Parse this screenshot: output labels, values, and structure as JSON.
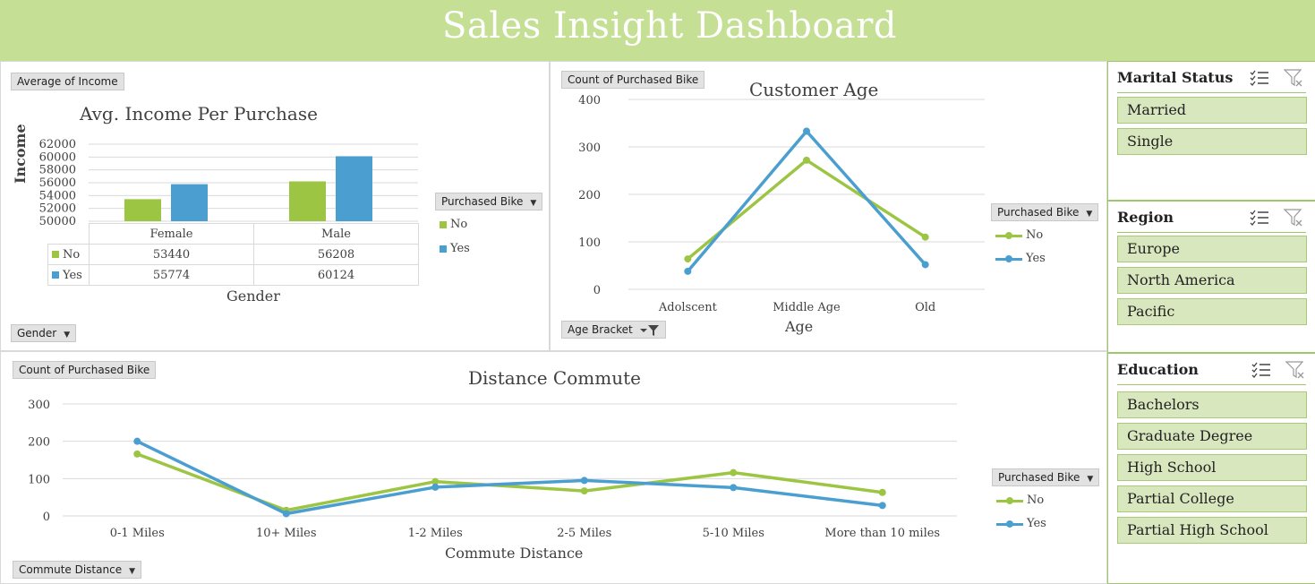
{
  "header": {
    "title": "Sales Insight Dashboard"
  },
  "colors": {
    "no": "#9dc544",
    "yes": "#4a9fd0",
    "header": "#c5df95",
    "grid": "#d9d9d9"
  },
  "income_panel": {
    "value_button": "Average of Income",
    "axis_button": "Gender",
    "legend_button": "Purchased Bike"
  },
  "age_panel": {
    "value_button": "Count of Purchased Bike",
    "axis_button": "Age Bracket",
    "legend_button": "Purchased Bike"
  },
  "commute_panel": {
    "value_button": "Count of Purchased Bike",
    "axis_button": "Commute Distance",
    "legend_button": "Purchased Bike"
  },
  "chart_data": [
    {
      "type": "bar",
      "title": "Avg. Income Per Purchase",
      "xlabel": "Gender",
      "ylabel": "Income",
      "categories": [
        "Female",
        "Male"
      ],
      "series": [
        {
          "name": "No",
          "values": [
            53440,
            56208
          ]
        },
        {
          "name": "Yes",
          "values": [
            55774,
            60124
          ]
        }
      ],
      "yticks": [
        "50000",
        "52000",
        "54000",
        "56000",
        "58000",
        "60000",
        "62000"
      ],
      "ylim": [
        50000,
        62000
      ],
      "legend": "right",
      "grid": true,
      "data_table": true
    },
    {
      "type": "line",
      "title": "Customer Age",
      "xlabel": "Age",
      "ylabel": "",
      "categories": [
        "Adolscent",
        "Middle Age",
        "Old"
      ],
      "series": [
        {
          "name": "No",
          "values": [
            64,
            272,
            110
          ]
        },
        {
          "name": "Yes",
          "values": [
            38,
            333,
            52
          ]
        }
      ],
      "yticks": [
        "0",
        "100",
        "200",
        "300",
        "400"
      ],
      "ylim": [
        0,
        400
      ],
      "legend": "right",
      "grid": true
    },
    {
      "type": "line",
      "title": "Distance Commute",
      "xlabel": "Commute Distance",
      "ylabel": "",
      "categories": [
        "0-1 Miles",
        "10+ Miles",
        "1-2 Miles",
        "2-5 Miles",
        "5-10 Miles",
        "More than 10 miles"
      ],
      "series": [
        {
          "name": "No",
          "values": [
            166,
            15,
            92,
            67,
            116,
            63
          ]
        },
        {
          "name": "Yes",
          "values": [
            200,
            6,
            77,
            95,
            76,
            28
          ]
        }
      ],
      "yticks": [
        "0",
        "100",
        "200",
        "300"
      ],
      "ylim": [
        0,
        300
      ],
      "legend": "right",
      "grid": true
    }
  ],
  "slicers": [
    {
      "title": "Marital Status",
      "items": [
        "Married",
        "Single"
      ]
    },
    {
      "title": "Region",
      "items": [
        "Europe",
        "North America",
        "Pacific"
      ]
    },
    {
      "title": "Education",
      "items": [
        "Bachelors",
        "Graduate Degree",
        "High School",
        "Partial College",
        "Partial High School"
      ]
    }
  ]
}
